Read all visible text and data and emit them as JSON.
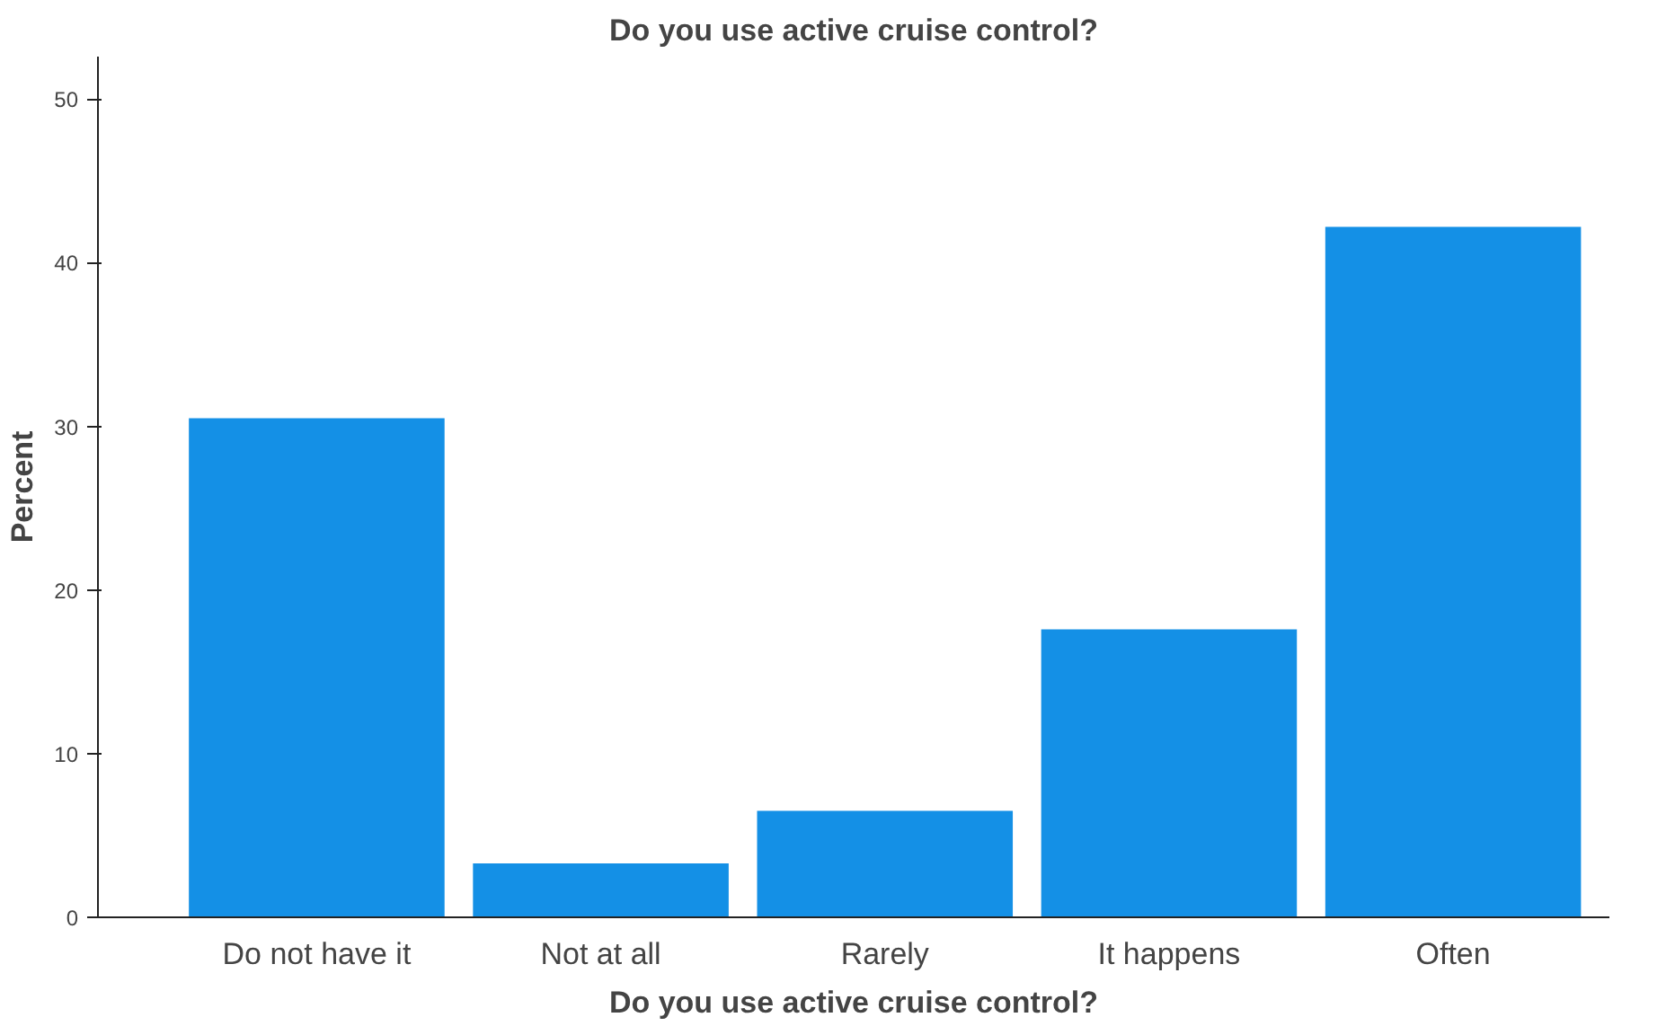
{
  "chart_data": {
    "type": "bar",
    "title": "Do you use active cruise control?",
    "xlabel": "Do you use active cruise control?",
    "ylabel": "Percent",
    "categories": [
      "Do not have it",
      "Not at all",
      "Rarely",
      "It happens",
      "Often"
    ],
    "values": [
      30.5,
      3.3,
      6.5,
      17.6,
      42.2
    ],
    "color": "#1490e6",
    "ylim": [
      0,
      52.6
    ],
    "yticks": [
      0,
      10,
      20,
      30,
      40,
      50
    ],
    "grid": false
  }
}
